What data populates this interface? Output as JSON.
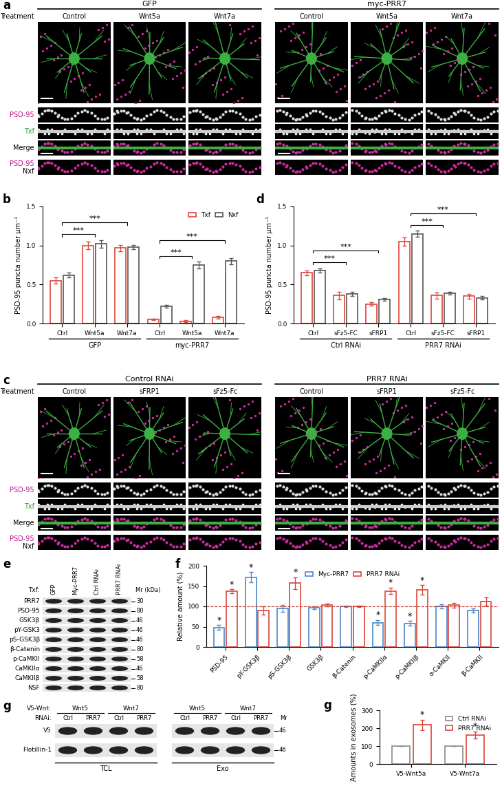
{
  "panels": {
    "a": {
      "panel_label": "a",
      "row_header": "Treatment",
      "groups": [
        {
          "title": "GFP",
          "treatments": [
            "Control",
            "Wnt5a",
            "Wnt7a"
          ]
        },
        {
          "title": "myc-PRR7",
          "treatments": [
            "Control",
            "Wnt5a",
            "Wnt7a"
          ]
        }
      ],
      "channel_rows": [
        {
          "text": "PSD-95",
          "color": "#c2188b"
        },
        {
          "text": "Txf",
          "color": "#2e9e2e"
        },
        {
          "text": "Merge",
          "color": "#000000"
        }
      ],
      "bottom_row": [
        {
          "text": "PSD-95",
          "color": "#c2188b"
        },
        {
          "text": "Nxf",
          "color": "#000000"
        }
      ]
    },
    "c": {
      "panel_label": "c",
      "row_header": "Treatment",
      "groups": [
        {
          "title": "Control RNAi",
          "treatments": [
            "Control",
            "sFRP1",
            "sFz5-Fc"
          ]
        },
        {
          "title": "PRR7 RNAi",
          "treatments": [
            "Control",
            "sFRP1",
            "sFz5-Fc"
          ]
        }
      ],
      "channel_rows": [
        {
          "text": "PSD-95",
          "color": "#c2188b"
        },
        {
          "text": "Txf",
          "color": "#2e9e2e"
        },
        {
          "text": "Merge",
          "color": "#000000"
        }
      ],
      "bottom_row": [
        {
          "text": "PSD-95",
          "color": "#c2188b"
        },
        {
          "text": "Nxf",
          "color": "#000000"
        }
      ]
    },
    "e": {
      "panel_label": "e",
      "lane_header": "Txf:",
      "lanes": [
        "GFP",
        "Myc-PRR7",
        "Ctrl RNAi",
        "PRR7 RNAi"
      ],
      "mr_label": "Mr (kDa)",
      "rows": [
        {
          "name": "PRR7",
          "mr": 30
        },
        {
          "name": "PSD-95",
          "mr": 80
        },
        {
          "name": "GSK3β",
          "mr": 46
        },
        {
          "name": "pY-GSK3",
          "mr": 46
        },
        {
          "name": "pS-GSK3β",
          "mr": 46
        },
        {
          "name": "β-Catenin",
          "mr": 80
        },
        {
          "name": "p-CaMKII",
          "mr": 58
        },
        {
          "name": "CaMKIIα",
          "mr": 46
        },
        {
          "name": "CaMKIIβ",
          "mr": 58
        },
        {
          "name": "NSF",
          "mr": 80
        }
      ]
    },
    "g": {
      "panel_label": "g",
      "group_header": "V5-Wnt:",
      "lane_header": "RNAi:",
      "mr_label": "Mr",
      "sections": [
        {
          "name": "TCL",
          "groups": [
            {
              "name": "Wnt5",
              "lanes": [
                "Ctrl",
                "PRR7"
              ]
            },
            {
              "name": "Wnt7",
              "lanes": [
                "Ctrl",
                "PRR7"
              ]
            }
          ]
        },
        {
          "name": "Exo",
          "groups": [
            {
              "name": "Wnt5",
              "lanes": [
                "Ctrl",
                "PRR7"
              ]
            },
            {
              "name": "Wnt7",
              "lanes": [
                "Ctrl",
                "PRR7"
              ]
            }
          ]
        }
      ],
      "rows": [
        {
          "name": "V5",
          "mr": 46
        },
        {
          "name": "Flotillin-1",
          "mr": 46
        }
      ]
    }
  },
  "chart_data": [
    {
      "panel_label": "b",
      "type": "bar",
      "ylabel": "PSD-95 puncta number µm⁻¹",
      "categories": [
        "Ctrl",
        "Wnt5a",
        "Wnt7a",
        "Ctrl",
        "Wnt5a",
        "Wnt7a"
      ],
      "groups": [
        {
          "name": "GFP",
          "count": 3
        },
        {
          "name": "myc-PRR7",
          "count": 3
        }
      ],
      "series": [
        {
          "name": "Txf",
          "color": "#e0443a",
          "values": [
            0.55,
            1.0,
            0.97,
            0.05,
            0.03,
            0.08
          ],
          "errors": [
            0.04,
            0.05,
            0.04,
            0.01,
            0.01,
            0.02
          ]
        },
        {
          "name": "Nxf",
          "color": "#555555",
          "values": [
            0.62,
            1.02,
            0.98,
            0.22,
            0.75,
            0.8
          ],
          "errors": [
            0.03,
            0.05,
            0.03,
            0.02,
            0.04,
            0.04
          ]
        }
      ],
      "significance": [
        {
          "from": 0,
          "to": 1,
          "label": "***"
        },
        {
          "from": 0,
          "to": 2,
          "label": "***"
        },
        {
          "from": 3,
          "to": 4,
          "label": "***"
        },
        {
          "from": 3,
          "to": 5,
          "label": "***"
        }
      ],
      "ylim": [
        0,
        1.5
      ],
      "yticks": [
        {
          "value": 0,
          "label": "0.0"
        },
        {
          "value": 0.5,
          "label": "0.5"
        },
        {
          "value": 1.0,
          "label": "1.0"
        },
        {
          "value": 1.5,
          "label": "1.5"
        }
      ],
      "legend": "upper right"
    },
    {
      "panel_label": "d",
      "type": "bar",
      "ylabel": "PSD-95 puncta number µm⁻¹",
      "categories": [
        "Ctrl",
        "sFz5-FC",
        "sFRP1",
        "Ctrl",
        "sFz5-FC",
        "sFRP1"
      ],
      "groups": [
        {
          "name": "Ctrl RNAi",
          "count": 3
        },
        {
          "name": "PRR7 RNAi",
          "count": 3
        }
      ],
      "series": [
        {
          "name": "Txf",
          "color": "#e0443a",
          "values": [
            0.65,
            0.36,
            0.25,
            1.05,
            0.36,
            0.35
          ],
          "errors": [
            0.03,
            0.05,
            0.02,
            0.05,
            0.04,
            0.03
          ]
        },
        {
          "name": "Nxf",
          "color": "#555555",
          "values": [
            0.68,
            0.38,
            0.31,
            1.15,
            0.39,
            0.33
          ],
          "errors": [
            0.03,
            0.03,
            0.02,
            0.04,
            0.02,
            0.02
          ]
        }
      ],
      "significance": [
        {
          "from": 0,
          "to": 1,
          "label": "***"
        },
        {
          "from": 0,
          "to": 2,
          "label": "***"
        },
        {
          "from": 3,
          "to": 4,
          "label": "***"
        },
        {
          "from": 3,
          "to": 5,
          "label": "***"
        }
      ],
      "ylim": [
        0,
        1.5
      ],
      "yticks": [
        {
          "value": 0,
          "label": "0.0"
        },
        {
          "value": 0.5,
          "label": "0.5"
        },
        {
          "value": 1.0,
          "label": "1.0"
        },
        {
          "value": 1.5,
          "label": "1.5"
        }
      ]
    },
    {
      "panel_label": "f",
      "type": "bar",
      "ylabel": "Relative amount (%)",
      "categories": [
        "PSD-95",
        "pY-GSK3β",
        "pS-GSK3β",
        "GSK3β",
        "β-Catenin",
        "p-CaMKIIα",
        "p-CaMKIIβ",
        "α-CaMKII",
        "β-CaMKII"
      ],
      "series": [
        {
          "name": "Myc-PRR7",
          "color": "#4a86c8",
          "values": [
            48,
            172,
            95,
            97,
            100,
            60,
            58,
            100,
            90
          ],
          "errors": [
            6,
            12,
            8,
            3,
            2,
            6,
            6,
            5,
            5
          ],
          "stars": [
            "*",
            "*",
            null,
            null,
            null,
            "*",
            "*",
            null,
            null
          ]
        },
        {
          "name": "PRR7 RNAi",
          "color": "#d9453a",
          "values": [
            137,
            90,
            157,
            103,
            100,
            138,
            140,
            103,
            112
          ],
          "errors": [
            5,
            10,
            15,
            3,
            2,
            8,
            12,
            6,
            10
          ],
          "stars": [
            "*",
            null,
            "*",
            null,
            null,
            "*",
            "*",
            null,
            null
          ]
        }
      ],
      "reference_line": 100,
      "ylim": [
        0,
        200
      ],
      "yticks": [
        0,
        50,
        100,
        150,
        200
      ],
      "legend": "upper center"
    },
    {
      "panel_label": "g",
      "type": "bar",
      "ylabel": "Amounts in exosomes (%)",
      "categories": [
        "V5-Wnt5a",
        "V5-Wnt7a"
      ],
      "series": [
        {
          "name": "Ctrl RNAi",
          "color": "#8a8a8a",
          "values": [
            100,
            100
          ],
          "errors": [
            0,
            0
          ],
          "stars": [
            null,
            null
          ]
        },
        {
          "name": "PRR7 RNAi",
          "color": "#d9453a",
          "values": [
            218,
            162
          ],
          "errors": [
            30,
            20
          ],
          "stars": [
            "*",
            "*"
          ]
        }
      ],
      "ylim": [
        0,
        300
      ],
      "yticks": [
        0,
        100,
        200,
        300
      ],
      "legend": "upper right"
    }
  ]
}
